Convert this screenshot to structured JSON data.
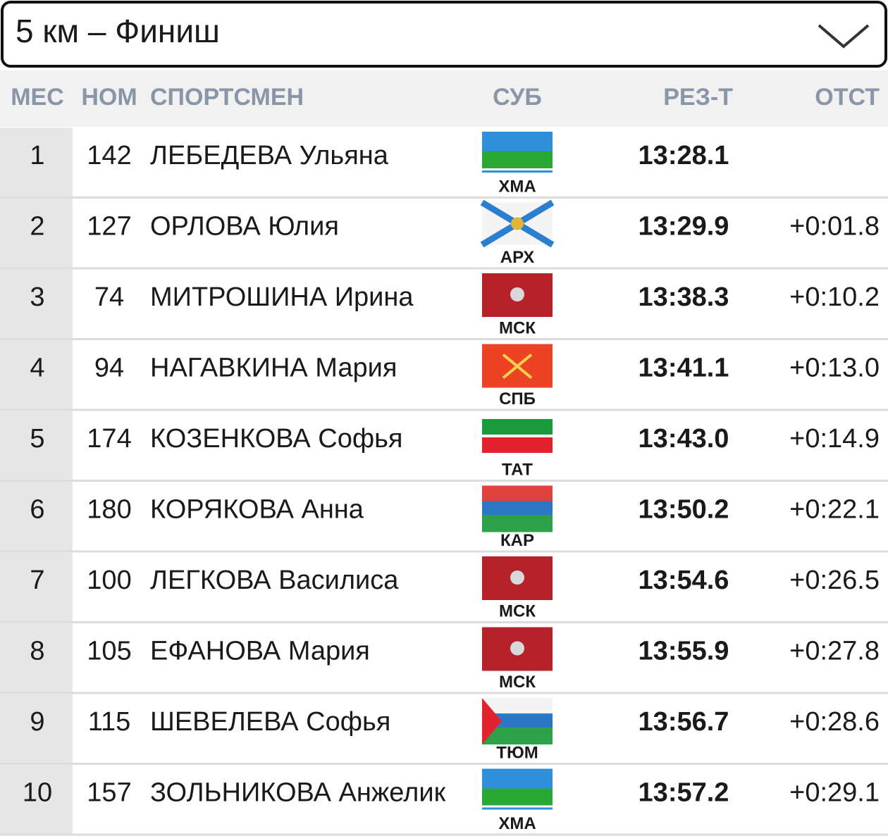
{
  "header": {
    "title": "5 км – Финиш"
  },
  "table": {
    "columns": [
      "МЕС",
      "НОМ",
      "СПОРТСМЕН",
      "СУБ",
      "РЕЗ-Т",
      "ОТСТ"
    ],
    "rows": [
      {
        "place": 1,
        "bib": 142,
        "name": "ЛЕБЕДЕВА Ульяна",
        "region": "ХМА",
        "result": "13:28.1"
      },
      {
        "place": 2,
        "bib": 127,
        "name": "ОРЛОВА Юлия",
        "region": "АРХ",
        "result": "13:29.9",
        "gap": "+0:01.8"
      },
      {
        "place": 3,
        "bib": 74,
        "name": "МИТРОШИНА Ирина",
        "region": "МСК",
        "result": "13:38.3",
        "gap": "+0:10.2"
      },
      {
        "place": 4,
        "bib": 94,
        "name": "НАГАВКИНА Мария",
        "region": "СПБ",
        "result": "13:41.1",
        "gap": "+0:13.0"
      },
      {
        "place": 5,
        "bib": 174,
        "name": "КОЗЕНКОВА Софья",
        "region": "ТАТ",
        "result": "13:43.0",
        "gap": "+0:14.9"
      },
      {
        "place": 6,
        "bib": 180,
        "name": "КОРЯКОВА Анна",
        "region": "КАР",
        "result": "13:50.2",
        "gap": "+0:22.1"
      },
      {
        "place": 7,
        "bib": 100,
        "name": "ЛЕГКОВА Василиса",
        "region": "МСК",
        "result": "13:54.6",
        "gap": "+0:26.5"
      },
      {
        "place": 8,
        "bib": 105,
        "name": "ЕФАНОВА Мария",
        "region": "МСК",
        "result": "13:55.9",
        "gap": "+0:27.8"
      },
      {
        "place": 9,
        "bib": 115,
        "name": "ШЕВЕЛЕВА Софья",
        "region": "ТЮМ",
        "result": "13:56.7",
        "gap": "+0:28.6"
      },
      {
        "place": 10,
        "bib": 157,
        "name": "ЗОЛЬНИКОВА Анжелик",
        "region": "ХМА",
        "result": "13:57.2",
        "gap": "+0:29.1"
      }
    ]
  }
}
